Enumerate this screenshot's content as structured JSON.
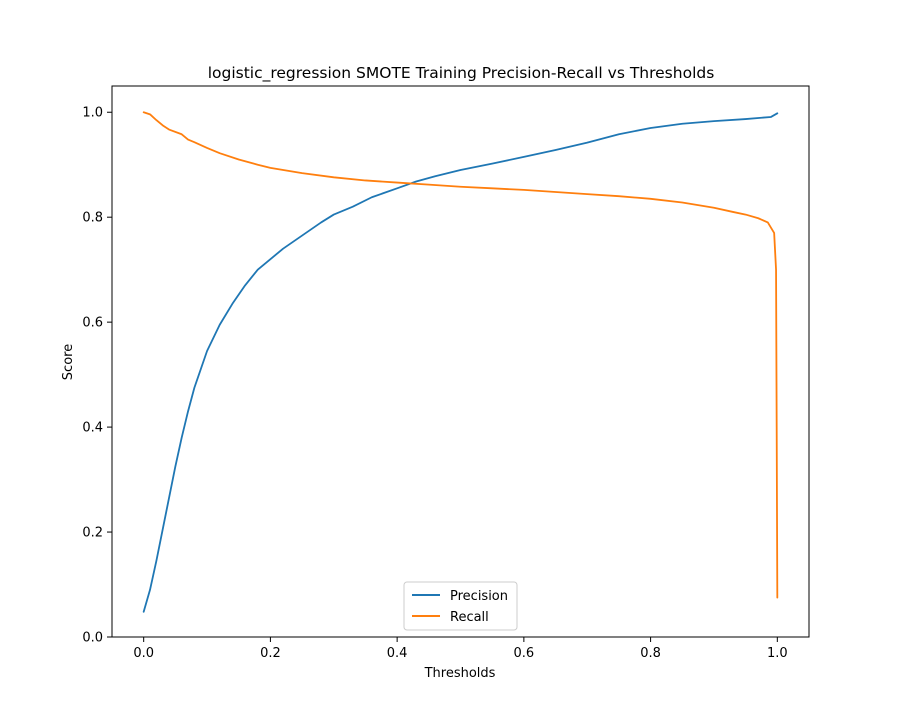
{
  "chart_data": {
    "type": "line",
    "title": "logistic_regression SMOTE Training Precision-Recall vs Thresholds",
    "xlabel": "Thresholds",
    "ylabel": "Score",
    "xlim": [
      -0.05,
      1.05
    ],
    "ylim": [
      0.0,
      1.05
    ],
    "xticks": [
      0.0,
      0.2,
      0.4,
      0.6,
      0.8,
      1.0
    ],
    "xtick_labels": [
      "0.0",
      "0.2",
      "0.4",
      "0.6",
      "0.8",
      "1.0"
    ],
    "yticks": [
      0.0,
      0.2,
      0.4,
      0.6,
      0.8,
      1.0
    ],
    "ytick_labels": [
      "0.0",
      "0.2",
      "0.4",
      "0.6",
      "0.8",
      "1.0"
    ],
    "grid": false,
    "legend": "lower-center",
    "series": [
      {
        "name": "Precision",
        "color": "#1f77b4",
        "x": [
          0.0,
          0.01,
          0.02,
          0.03,
          0.04,
          0.05,
          0.06,
          0.07,
          0.08,
          0.09,
          0.1,
          0.12,
          0.14,
          0.16,
          0.18,
          0.2,
          0.22,
          0.25,
          0.28,
          0.3,
          0.33,
          0.36,
          0.4,
          0.43,
          0.46,
          0.5,
          0.55,
          0.6,
          0.65,
          0.7,
          0.75,
          0.8,
          0.85,
          0.9,
          0.95,
          0.99,
          1.0
        ],
        "y": [
          0.048,
          0.09,
          0.145,
          0.205,
          0.265,
          0.325,
          0.38,
          0.43,
          0.475,
          0.51,
          0.545,
          0.595,
          0.635,
          0.67,
          0.7,
          0.72,
          0.74,
          0.765,
          0.79,
          0.805,
          0.82,
          0.838,
          0.855,
          0.868,
          0.878,
          0.89,
          0.902,
          0.915,
          0.928,
          0.942,
          0.958,
          0.97,
          0.978,
          0.983,
          0.987,
          0.991,
          0.998
        ]
      },
      {
        "name": "Recall",
        "color": "#ff7f0e",
        "x": [
          0.0,
          0.01,
          0.02,
          0.03,
          0.04,
          0.06,
          0.07,
          0.08,
          0.1,
          0.12,
          0.15,
          0.18,
          0.2,
          0.25,
          0.3,
          0.35,
          0.4,
          0.45,
          0.5,
          0.55,
          0.6,
          0.65,
          0.7,
          0.75,
          0.8,
          0.85,
          0.9,
          0.93,
          0.95,
          0.97,
          0.985,
          0.995,
          0.998,
          0.999,
          1.0
        ],
        "y": [
          1.0,
          0.996,
          0.985,
          0.975,
          0.967,
          0.958,
          0.948,
          0.943,
          0.932,
          0.922,
          0.91,
          0.9,
          0.894,
          0.884,
          0.876,
          0.87,
          0.866,
          0.862,
          0.858,
          0.855,
          0.852,
          0.848,
          0.844,
          0.84,
          0.835,
          0.828,
          0.818,
          0.81,
          0.805,
          0.798,
          0.79,
          0.77,
          0.7,
          0.4,
          0.075
        ]
      }
    ]
  }
}
